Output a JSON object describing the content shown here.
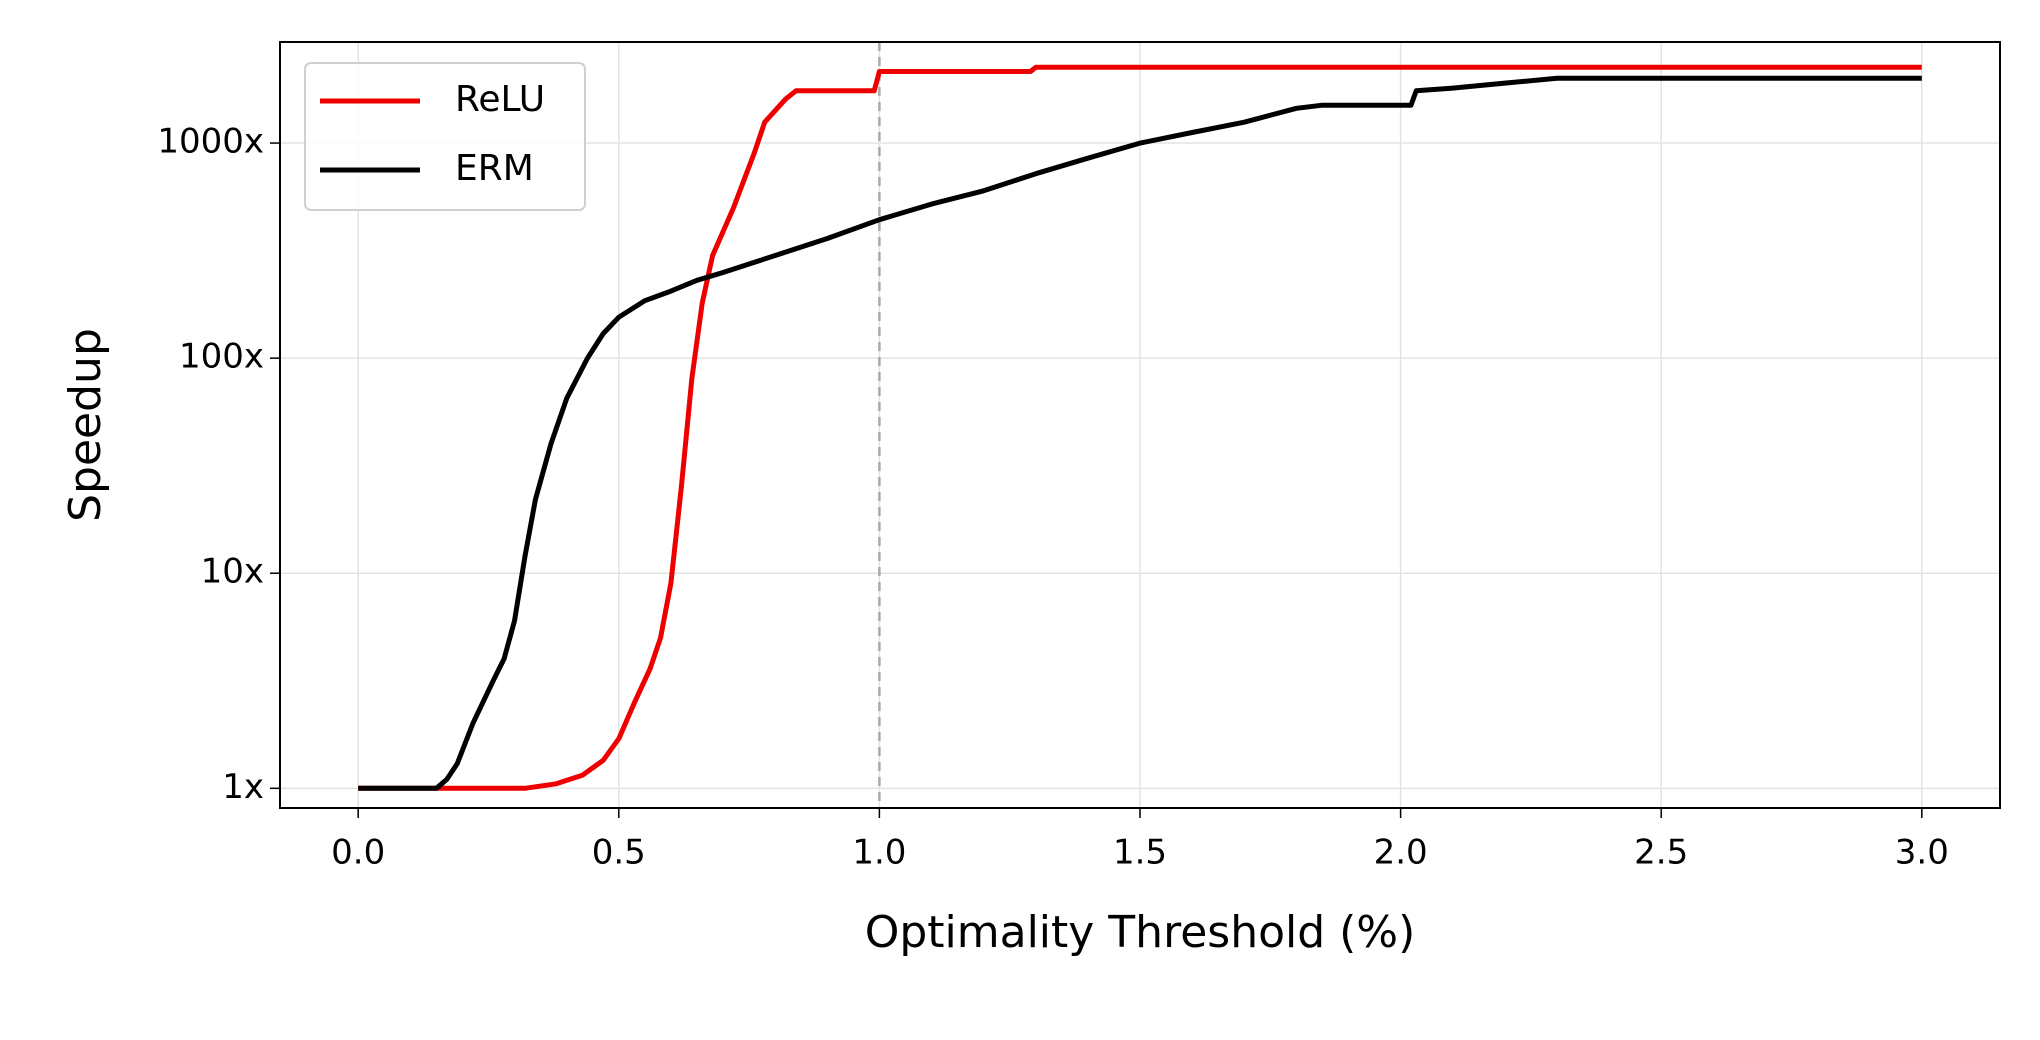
{
  "chart_data": {
    "type": "line",
    "xlabel": "Optimality Threshold (%)",
    "ylabel": "Speedup",
    "xlim": [
      -0.15,
      3.15
    ],
    "ylim": [
      0.81,
      2950
    ],
    "yscale": "log",
    "grid": true,
    "legend": "upper left",
    "xticks": [
      {
        "value": 0,
        "label": "0.0"
      },
      0.5,
      {
        "value": 1,
        "label": "1.0"
      },
      1.5,
      {
        "value": 2,
        "label": "2.0"
      },
      2.5,
      {
        "value": 3,
        "label": "3.0"
      }
    ],
    "yticks": [
      {
        "value": 1,
        "label": "1x"
      },
      {
        "value": 10,
        "label": "10x"
      },
      {
        "value": 100,
        "label": "100x"
      },
      {
        "value": 1000,
        "label": "1000x"
      }
    ],
    "reference_line": {
      "x": 1,
      "color": "#aaaaaa"
    },
    "series": [
      {
        "name": "ReLU",
        "color": "#ee0000",
        "x": [
          0,
          0.15,
          0.32,
          0.38,
          0.43,
          0.47,
          0.5,
          0.53,
          0.56,
          0.58,
          0.6,
          0.62,
          0.64,
          0.66,
          0.68,
          0.72,
          0.76,
          0.78,
          0.82,
          0.84,
          0.99,
          1.0,
          1.29,
          1.3,
          3.0
        ],
        "values": [
          1,
          1,
          1,
          1.05,
          1.15,
          1.35,
          1.7,
          2.5,
          3.6,
          5,
          9,
          25,
          80,
          180,
          300,
          500,
          900,
          1250,
          1600,
          1750,
          1750,
          2150,
          2150,
          2250,
          2250
        ]
      },
      {
        "name": "ERM",
        "color": "#000000",
        "x": [
          0,
          0.15,
          0.17,
          0.19,
          0.22,
          0.26,
          0.28,
          0.3,
          0.32,
          0.34,
          0.37,
          0.4,
          0.44,
          0.47,
          0.5,
          0.55,
          0.6,
          0.65,
          0.7,
          0.8,
          0.9,
          1.0,
          1.1,
          1.2,
          1.3,
          1.4,
          1.5,
          1.6,
          1.7,
          1.8,
          1.85,
          2.02,
          2.03,
          2.1,
          2.2,
          2.3,
          3.0
        ],
        "values": [
          1,
          1,
          1.1,
          1.3,
          2,
          3.2,
          4,
          6,
          12,
          22,
          40,
          65,
          100,
          130,
          155,
          185,
          205,
          230,
          250,
          300,
          360,
          440,
          520,
          600,
          720,
          850,
          1000,
          1120,
          1250,
          1450,
          1500,
          1500,
          1750,
          1800,
          1900,
          2000,
          2000
        ]
      }
    ]
  }
}
